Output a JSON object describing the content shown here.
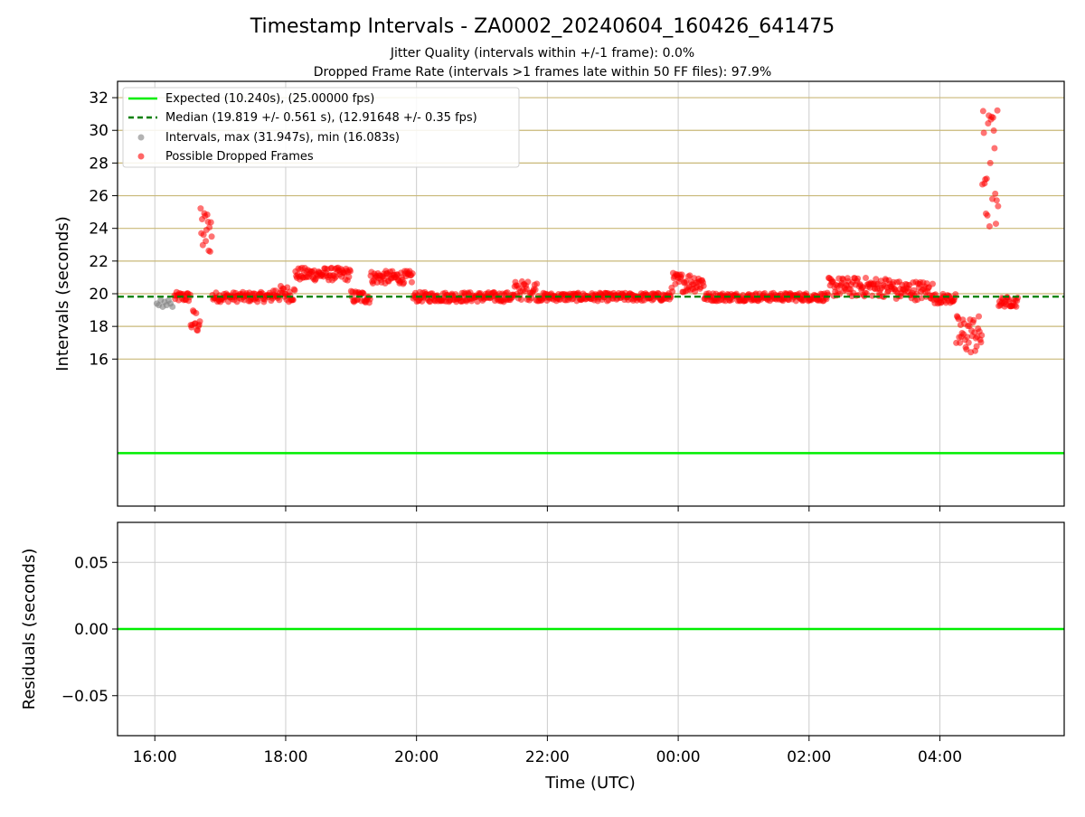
{
  "chart_data": [
    {
      "type": "scatter",
      "title": "Timestamp Intervals - ZA0002_20240604_160426_641475",
      "subtitles": [
        "Jitter Quality (intervals within +/-1 frame): 0.0%",
        "Dropped Frame Rate (intervals >1 frames late within 50 FF files): 97.9%"
      ],
      "ylabel": "Intervals (seconds)",
      "xlim": [
        -0.57,
        13.9
      ],
      "ylim": [
        7.0,
        33.0
      ],
      "yticks": [
        16,
        18,
        20,
        22,
        24,
        26,
        28,
        30,
        32
      ],
      "ytick_labels": [
        "16",
        "18",
        "20",
        "22",
        "24",
        "26",
        "28",
        "30",
        "32"
      ],
      "xticks": [
        0,
        2,
        4,
        6,
        8,
        10,
        12
      ],
      "grid": true,
      "hlines": [
        16,
        18,
        20,
        22,
        24,
        26,
        28,
        30,
        32
      ],
      "expected_interval": 10.24,
      "median_interval": 19.819,
      "legend_position": "top-left",
      "legend": [
        "Expected (10.240s), (25.00000 fps)",
        "Median (19.819 +/- 0.561 s), (12.91648 +/- 0.35 fps)",
        "Intervals, max (31.947s), min (16.083s)",
        "Possible Dropped Frames"
      ],
      "colors": {
        "expected": "#00ee00",
        "median": "#007f00",
        "intervals": "#808080",
        "dropped": "#ff0000",
        "hline": "#c9b878"
      },
      "series": [
        {
          "name": "Intervals, max (31.947s), min (16.083s)",
          "x": [
            0.03,
            0.06,
            0.09,
            0.12,
            0.15,
            0.18,
            0.21,
            0.24,
            0.27
          ],
          "y": [
            19.4,
            19.3,
            19.6,
            19.2,
            19.5,
            19.3,
            19.6,
            19.4,
            19.2
          ]
        },
        {
          "name": "Possible Dropped Frames",
          "segments": [
            {
              "x0": 0.3,
              "x1": 0.55,
              "base": 19.8,
              "spread": 0.3
            },
            {
              "x0": 0.55,
              "x1": 0.7,
              "base": 18.3,
              "spread": 0.8
            },
            {
              "x0": 0.7,
              "x1": 0.88,
              "base": 23.8,
              "spread": 1.5
            },
            {
              "x0": 0.88,
              "x1": 1.8,
              "base": 19.8,
              "spread": 0.3
            },
            {
              "x0": 1.8,
              "x1": 2.15,
              "base": 20.0,
              "spread": 0.5
            },
            {
              "x0": 2.15,
              "x1": 3.0,
              "base": 21.2,
              "spread": 0.4
            },
            {
              "x0": 3.0,
              "x1": 3.3,
              "base": 19.8,
              "spread": 0.4
            },
            {
              "x0": 3.3,
              "x1": 3.95,
              "base": 21.0,
              "spread": 0.4
            },
            {
              "x0": 3.95,
              "x1": 5.5,
              "base": 19.8,
              "spread": 0.3
            },
            {
              "x0": 5.5,
              "x1": 5.85,
              "base": 20.2,
              "spread": 0.6
            },
            {
              "x0": 5.85,
              "x1": 7.9,
              "base": 19.8,
              "spread": 0.25
            },
            {
              "x0": 7.9,
              "x1": 8.4,
              "base": 20.7,
              "spread": 0.6
            },
            {
              "x0": 8.4,
              "x1": 10.3,
              "base": 19.8,
              "spread": 0.25
            },
            {
              "x0": 10.3,
              "x1": 11.3,
              "base": 20.4,
              "spread": 0.6
            },
            {
              "x0": 11.3,
              "x1": 11.9,
              "base": 20.2,
              "spread": 0.6
            },
            {
              "x0": 11.9,
              "x1": 12.25,
              "base": 19.7,
              "spread": 0.3
            },
            {
              "x0": 12.25,
              "x1": 12.65,
              "base": 17.5,
              "spread": 1.2
            },
            {
              "x0": 12.65,
              "x1": 12.9,
              "base": 27.5,
              "spread": 4.0
            },
            {
              "x0": 12.9,
              "x1": 13.2,
              "base": 19.5,
              "spread": 0.3
            }
          ]
        },
        {
          "name": "Expected (10.240s), (25.00000 fps)",
          "y": 10.24
        },
        {
          "name": "Median (19.819 +/- 0.561 s), (12.91648 +/- 0.35 fps)",
          "y": 19.819
        }
      ]
    },
    {
      "type": "line",
      "ylabel": "Residuals (seconds)",
      "xlabel": "Time (UTC)",
      "xlim": [
        -0.57,
        13.9
      ],
      "ylim": [
        -0.08,
        0.08
      ],
      "yticks": [
        0.05,
        0.0,
        -0.05
      ],
      "ytick_labels": [
        "0.05",
        "0.00",
        "−0.05"
      ],
      "xticks": [
        0,
        2,
        4,
        6,
        8,
        10,
        12
      ],
      "xtick_labels": [
        "16:00",
        "18:00",
        "20:00",
        "22:00",
        "00:00",
        "02:00",
        "04:00"
      ],
      "grid": true,
      "series": [
        {
          "name": "Residuals",
          "y": 0.0
        }
      ]
    }
  ]
}
